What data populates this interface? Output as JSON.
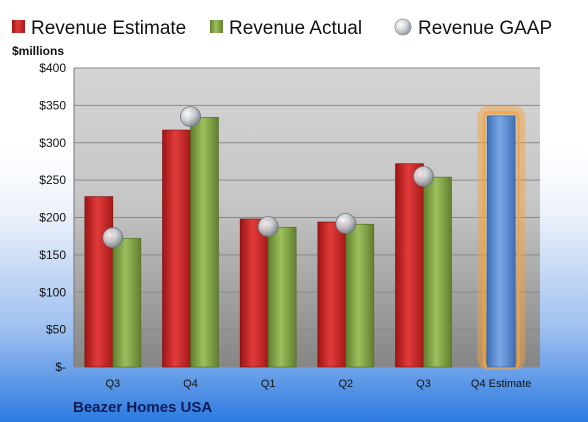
{
  "colors": {
    "estimate": "#d42a2a",
    "actual": "#8db14f",
    "gaap": "#b9bec5",
    "forecast": "#5a8fd8",
    "highlight": "#f7a23a"
  },
  "company": "Beazer Homes USA",
  "chart_data": {
    "type": "bar",
    "title": "",
    "ylabel": "$millions",
    "xlabel": "",
    "ylim": [
      0,
      400
    ],
    "y_ticks": [
      "$-",
      "$50",
      "$100",
      "$150",
      "$200",
      "$250",
      "$300",
      "$350",
      "$400"
    ],
    "categories": [
      "Q3",
      "Q4",
      "Q1",
      "Q2",
      "Q3",
      "Q4 Estimate"
    ],
    "series": [
      {
        "name": "Revenue Estimate",
        "values": [
          228,
          317,
          198,
          194,
          272,
          null
        ]
      },
      {
        "name": "Revenue Actual",
        "values": [
          172,
          334,
          187,
          191,
          254,
          null
        ]
      },
      {
        "name": "Revenue GAAP",
        "type": "marker",
        "values": [
          173,
          335,
          188,
          192,
          255,
          null
        ]
      },
      {
        "name": "Q4 Estimate",
        "values": [
          null,
          null,
          null,
          null,
          null,
          336
        ],
        "highlighted": true
      }
    ],
    "legend": "top",
    "grid": true
  }
}
